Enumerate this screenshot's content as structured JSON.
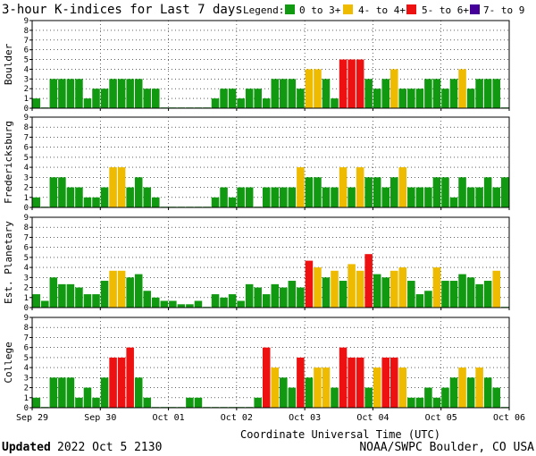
{
  "header": {
    "title": "3-hour K-indices for Last 7 days",
    "legend_label": "Legend:",
    "legend": [
      {
        "label": "0 to 3+",
        "color": "#119911"
      },
      {
        "label": "4- to 4+",
        "color": "#eebb00"
      },
      {
        "label": "5- to 6+",
        "color": "#ee1111"
      },
      {
        "label": "7- to 9",
        "color": "#440099"
      }
    ]
  },
  "footer": {
    "updated_label": "Updated",
    "updated_value": "2022 Oct  5 2130",
    "source": "NOAA/SWPC Boulder, CO USA"
  },
  "chart_data": {
    "type": "bar",
    "xlabel": "Coordinate Universal Time (UTC)",
    "x_ticks": [
      "Sep 29",
      "Sep 30",
      "Oct 01",
      "Oct 02",
      "Oct 03",
      "Oct 04",
      "Oct 05",
      "Oct 06"
    ],
    "ylim": [
      0,
      9
    ],
    "y_ticks": [
      0,
      1,
      2,
      3,
      4,
      5,
      6,
      7,
      8,
      9
    ],
    "grid": true,
    "panels": [
      {
        "name": "Boulder",
        "values": [
          1,
          0,
          3,
          3,
          3,
          3,
          1,
          2,
          2,
          3,
          3,
          3,
          3,
          2,
          2,
          0,
          0,
          0,
          0,
          0,
          0,
          1,
          2,
          2,
          1,
          2,
          2,
          1,
          3,
          3,
          3,
          2,
          4,
          4,
          3,
          1,
          5,
          5,
          5,
          3,
          2,
          3,
          4,
          2,
          2,
          2,
          3,
          3,
          2,
          3,
          4,
          2,
          3,
          3,
          3,
          0
        ]
      },
      {
        "name": "Fredericksburg",
        "values": [
          1,
          0,
          3,
          3,
          2,
          2,
          1,
          1,
          2,
          4,
          4,
          2,
          3,
          2,
          1,
          0,
          0,
          0,
          0,
          0,
          0,
          1,
          2,
          1,
          2,
          2,
          0,
          2,
          2,
          2,
          2,
          4,
          3,
          3,
          2,
          2,
          4,
          2,
          4,
          3,
          3,
          2,
          3,
          4,
          2,
          2,
          2,
          3,
          3,
          1,
          3,
          2,
          2,
          3,
          2,
          3
        ]
      },
      {
        "name": "Est. Planetary",
        "values": [
          1.33,
          0.67,
          3,
          2.33,
          2.33,
          2,
          1.33,
          1.33,
          2.67,
          3.67,
          3.67,
          3,
          3.33,
          1.67,
          1,
          0.67,
          0.67,
          0.33,
          0.33,
          0.67,
          0,
          1.33,
          1,
          1.33,
          0.67,
          2.33,
          2,
          1.33,
          2.33,
          2,
          2.67,
          2,
          4.67,
          4,
          3,
          3.67,
          2.67,
          4.33,
          3.67,
          5.33,
          3.33,
          3,
          3.67,
          4,
          2.67,
          1.33,
          1.67,
          4,
          2.67,
          2.67,
          3.33,
          3,
          2.33,
          2.67,
          3.67,
          0
        ]
      },
      {
        "name": "College",
        "values": [
          1,
          0,
          3,
          3,
          3,
          1,
          2,
          1,
          3,
          5,
          5,
          6,
          3,
          1,
          0,
          0,
          0,
          0,
          1,
          1,
          0,
          0,
          0,
          0,
          0,
          0,
          1,
          6,
          4,
          3,
          2,
          5,
          3,
          4,
          4,
          2,
          6,
          5,
          5,
          2,
          4,
          5,
          5,
          4,
          1,
          1,
          2,
          1,
          2,
          3,
          4,
          3,
          4,
          3,
          2,
          0
        ]
      }
    ]
  }
}
